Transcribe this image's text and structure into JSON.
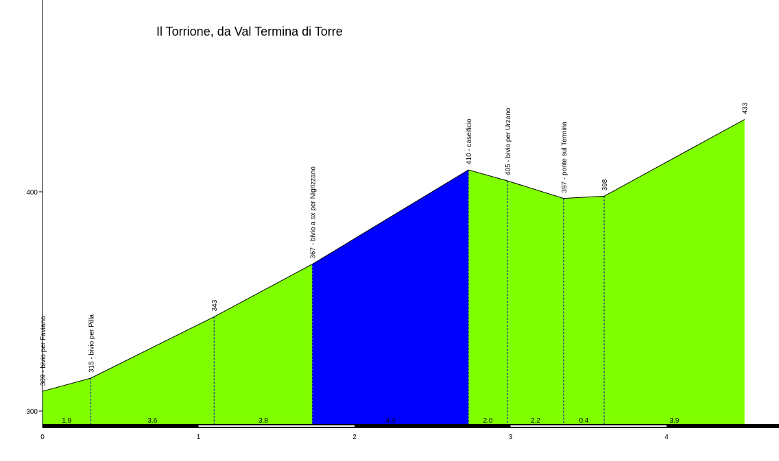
{
  "chart_data": {
    "type": "area",
    "title": "Il Torrione, da Val Termina di Torre",
    "xlabel": "",
    "ylabel": "",
    "xlim": [
      0,
      4.5
    ],
    "ylim": [
      300,
      433
    ],
    "x_ticks": [
      "0",
      "1",
      "2",
      "3",
      "4"
    ],
    "y_ticks": [
      "300",
      "400"
    ],
    "profile": [
      {
        "x": 0.0,
        "y": 309
      },
      {
        "x": 0.31,
        "y": 315
      },
      {
        "x": 1.1,
        "y": 343
      },
      {
        "x": 1.73,
        "y": 367
      },
      {
        "x": 2.73,
        "y": 410
      },
      {
        "x": 2.98,
        "y": 405
      },
      {
        "x": 3.34,
        "y": 397
      },
      {
        "x": 3.6,
        "y": 398
      },
      {
        "x": 4.5,
        "y": 433
      }
    ],
    "waypoints": [
      {
        "x": 0.0,
        "label": "309 - bivio per Faviano"
      },
      {
        "x": 0.31,
        "label": "315 - bivio per Pilla"
      },
      {
        "x": 1.1,
        "label": "343"
      },
      {
        "x": 1.73,
        "label": "367 - bivio a sx per Nigrizzano"
      },
      {
        "x": 2.73,
        "label": "410 - caseificio"
      },
      {
        "x": 2.98,
        "label": "405 - bivio per Urzano"
      },
      {
        "x": 3.34,
        "label": "397 - ponte sul Termina"
      },
      {
        "x": 3.6,
        "label": "398"
      },
      {
        "x": 4.5,
        "label": "433"
      }
    ],
    "segments": [
      {
        "from": 0.0,
        "to": 0.31,
        "gradient": "1.9",
        "color": "#80ff00"
      },
      {
        "from": 0.31,
        "to": 1.1,
        "gradient": "3.6",
        "color": "#80ff00"
      },
      {
        "from": 1.1,
        "to": 1.73,
        "gradient": "3.8",
        "color": "#80ff00"
      },
      {
        "from": 1.73,
        "to": 2.73,
        "gradient": "4.3",
        "color": "#0000ff"
      },
      {
        "from": 2.73,
        "to": 2.98,
        "gradient": "2.0",
        "color": "#80ff00"
      },
      {
        "from": 2.98,
        "to": 3.34,
        "gradient": "2.2",
        "color": "#80ff00"
      },
      {
        "from": 3.34,
        "to": 3.6,
        "gradient": "0.4",
        "color": "#80ff00"
      },
      {
        "from": 3.6,
        "to": 4.5,
        "gradient": "3.9",
        "color": "#80ff00"
      }
    ],
    "grid": false,
    "legend": "none"
  }
}
